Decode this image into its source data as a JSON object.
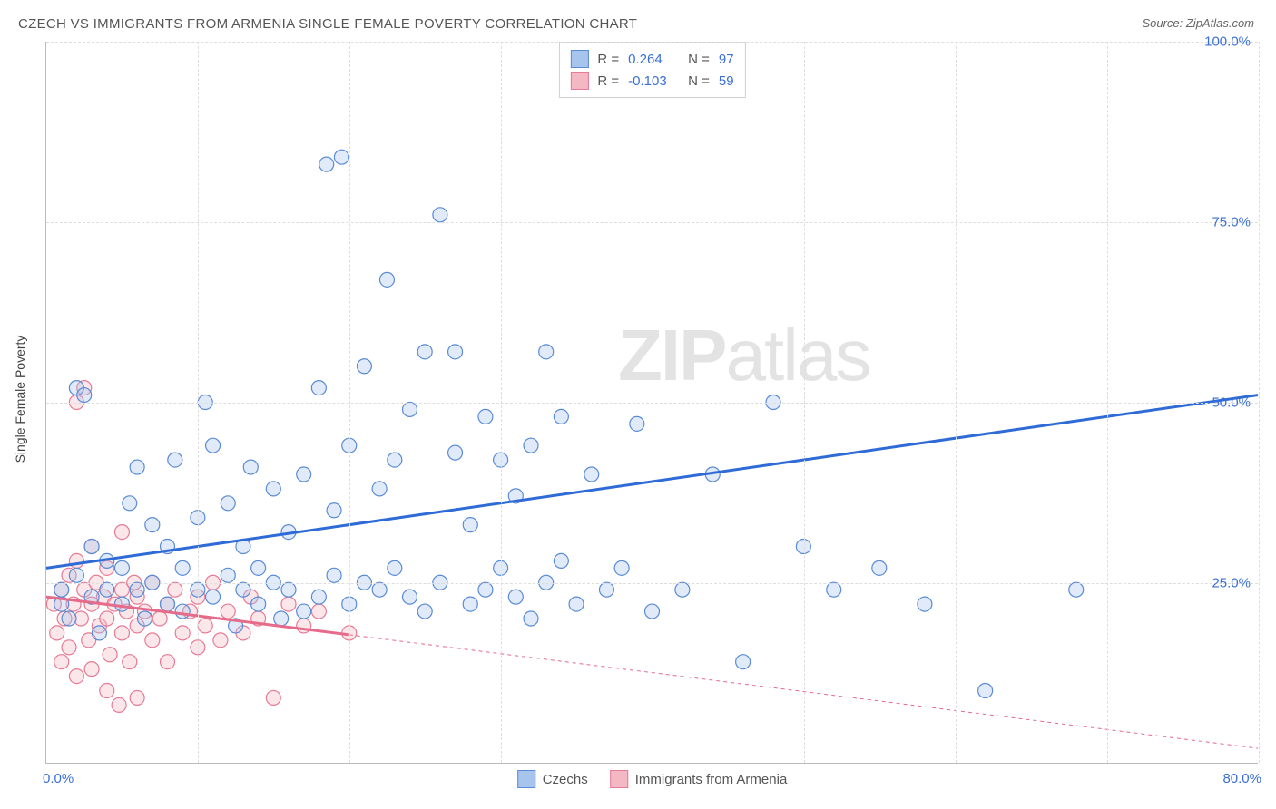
{
  "title": "CZECH VS IMMIGRANTS FROM ARMENIA SINGLE FEMALE POVERTY CORRELATION CHART",
  "source": "Source: ZipAtlas.com",
  "yaxis_title": "Single Female Poverty",
  "watermark": {
    "zip": "ZIP",
    "atlas": "atlas",
    "fontsize": 80,
    "color": "#c8c8c8"
  },
  "colors": {
    "blue_fill": "#a7c4ec",
    "blue_stroke": "#5a8bd6",
    "blue_line": "#2e6bd6",
    "pink_fill": "#f4b7c4",
    "pink_stroke": "#e77a94",
    "pink_line": "#e66a8a",
    "axis_text": "#3a6fd8",
    "grid": "#dddddd",
    "border": "#bbbbbb",
    "title_text": "#555555",
    "background": "#ffffff"
  },
  "chart": {
    "type": "scatter",
    "xlim": [
      0,
      80
    ],
    "ylim": [
      0,
      100
    ],
    "xtick_min_label": "0.0%",
    "xtick_max_label": "80.0%",
    "yticks": [
      {
        "v": 25,
        "label": "25.0%"
      },
      {
        "v": 50,
        "label": "50.0%"
      },
      {
        "v": 75,
        "label": "75.0%"
      },
      {
        "v": 100,
        "label": "100.0%"
      }
    ],
    "xgrid_values": [
      10,
      20,
      30,
      40,
      50,
      60,
      70,
      80
    ],
    "marker_radius": 8,
    "marker_fill_opacity": 0.35,
    "regression_line_width": 3,
    "extrapolation_dash": "4 4"
  },
  "stats_legend": {
    "rows": [
      {
        "swatch": "blue",
        "r_label": "R =",
        "r_value": "0.264",
        "n_label": "N =",
        "n_value": "97"
      },
      {
        "swatch": "pink",
        "r_label": "R =",
        "r_value": "-0.103",
        "n_label": "N =",
        "n_value": "59"
      }
    ]
  },
  "series_legend": {
    "items": [
      {
        "swatch": "blue",
        "label": "Czechs"
      },
      {
        "swatch": "pink",
        "label": "Immigrants from Armenia"
      }
    ]
  },
  "series": {
    "czechs": {
      "color_key": "blue",
      "regression": {
        "x1": 0,
        "y1": 27,
        "x2": 80,
        "y2": 51,
        "data_xmax": 80
      },
      "points": [
        [
          1,
          22
        ],
        [
          1,
          24
        ],
        [
          1.5,
          20
        ],
        [
          2,
          26
        ],
        [
          2,
          52
        ],
        [
          2.5,
          51
        ],
        [
          3,
          23
        ],
        [
          3,
          30
        ],
        [
          3.5,
          18
        ],
        [
          4,
          24
        ],
        [
          4,
          28
        ],
        [
          5,
          22
        ],
        [
          5,
          27
        ],
        [
          5.5,
          36
        ],
        [
          6,
          24
        ],
        [
          6,
          41
        ],
        [
          6.5,
          20
        ],
        [
          7,
          25
        ],
        [
          7,
          33
        ],
        [
          8,
          22
        ],
        [
          8,
          30
        ],
        [
          8.5,
          42
        ],
        [
          9,
          21
        ],
        [
          9,
          27
        ],
        [
          10,
          24
        ],
        [
          10,
          34
        ],
        [
          10.5,
          50
        ],
        [
          11,
          23
        ],
        [
          11,
          44
        ],
        [
          12,
          26
        ],
        [
          12,
          36
        ],
        [
          12.5,
          19
        ],
        [
          13,
          24
        ],
        [
          13,
          30
        ],
        [
          13.5,
          41
        ],
        [
          14,
          22
        ],
        [
          14,
          27
        ],
        [
          15,
          25
        ],
        [
          15,
          38
        ],
        [
          15.5,
          20
        ],
        [
          16,
          24
        ],
        [
          16,
          32
        ],
        [
          17,
          21
        ],
        [
          17,
          40
        ],
        [
          18,
          23
        ],
        [
          18,
          52
        ],
        [
          18.5,
          83
        ],
        [
          19,
          26
        ],
        [
          19,
          35
        ],
        [
          19.5,
          84
        ],
        [
          20,
          22
        ],
        [
          20,
          44
        ],
        [
          21,
          25
        ],
        [
          21,
          55
        ],
        [
          22,
          24
        ],
        [
          22,
          38
        ],
        [
          22.5,
          67
        ],
        [
          23,
          27
        ],
        [
          23,
          42
        ],
        [
          24,
          23
        ],
        [
          24,
          49
        ],
        [
          25,
          21
        ],
        [
          25,
          57
        ],
        [
          26,
          25
        ],
        [
          26,
          76
        ],
        [
          27,
          43
        ],
        [
          27,
          57
        ],
        [
          28,
          22
        ],
        [
          28,
          33
        ],
        [
          29,
          24
        ],
        [
          29,
          48
        ],
        [
          30,
          27
        ],
        [
          30,
          42
        ],
        [
          31,
          23
        ],
        [
          31,
          37
        ],
        [
          32,
          20
        ],
        [
          32,
          44
        ],
        [
          33,
          25
        ],
        [
          33,
          57
        ],
        [
          34,
          28
        ],
        [
          34,
          48
        ],
        [
          35,
          22
        ],
        [
          36,
          40
        ],
        [
          37,
          24
        ],
        [
          38,
          27
        ],
        [
          39,
          47
        ],
        [
          40,
          21
        ],
        [
          42,
          24
        ],
        [
          44,
          40
        ],
        [
          46,
          14
        ],
        [
          48,
          50
        ],
        [
          50,
          30
        ],
        [
          52,
          24
        ],
        [
          55,
          27
        ],
        [
          58,
          22
        ],
        [
          62,
          10
        ],
        [
          68,
          24
        ]
      ]
    },
    "armenia": {
      "color_key": "pink",
      "regression": {
        "x1": 0,
        "y1": 23,
        "x2": 80,
        "y2": 2,
        "data_xmax": 20
      },
      "points": [
        [
          0.5,
          22
        ],
        [
          0.7,
          18
        ],
        [
          1,
          24
        ],
        [
          1,
          14
        ],
        [
          1.2,
          20
        ],
        [
          1.5,
          26
        ],
        [
          1.5,
          16
        ],
        [
          1.8,
          22
        ],
        [
          2,
          28
        ],
        [
          2,
          12
        ],
        [
          2,
          50
        ],
        [
          2.3,
          20
        ],
        [
          2.5,
          24
        ],
        [
          2.5,
          52
        ],
        [
          2.8,
          17
        ],
        [
          3,
          22
        ],
        [
          3,
          30
        ],
        [
          3,
          13
        ],
        [
          3.3,
          25
        ],
        [
          3.5,
          19
        ],
        [
          3.8,
          23
        ],
        [
          4,
          20
        ],
        [
          4,
          27
        ],
        [
          4,
          10
        ],
        [
          4.2,
          15
        ],
        [
          4.5,
          22
        ],
        [
          4.8,
          8
        ],
        [
          5,
          24
        ],
        [
          5,
          18
        ],
        [
          5,
          32
        ],
        [
          5.3,
          21
        ],
        [
          5.5,
          14
        ],
        [
          5.8,
          25
        ],
        [
          6,
          19
        ],
        [
          6,
          23
        ],
        [
          6,
          9
        ],
        [
          6.5,
          21
        ],
        [
          7,
          17
        ],
        [
          7,
          25
        ],
        [
          7.5,
          20
        ],
        [
          8,
          22
        ],
        [
          8,
          14
        ],
        [
          8.5,
          24
        ],
        [
          9,
          18
        ],
        [
          9.5,
          21
        ],
        [
          10,
          16
        ],
        [
          10,
          23
        ],
        [
          10.5,
          19
        ],
        [
          11,
          25
        ],
        [
          11.5,
          17
        ],
        [
          12,
          21
        ],
        [
          13,
          18
        ],
        [
          13.5,
          23
        ],
        [
          14,
          20
        ],
        [
          15,
          9
        ],
        [
          16,
          22
        ],
        [
          17,
          19
        ],
        [
          18,
          21
        ],
        [
          20,
          18
        ]
      ]
    }
  }
}
